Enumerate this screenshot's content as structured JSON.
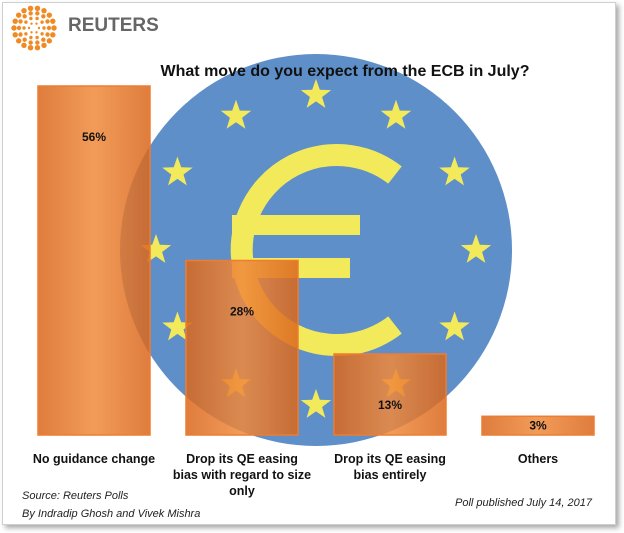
{
  "logo": "REUTERS",
  "chart_data": {
    "type": "bar",
    "title": "What move do you expect from the ECB in July?",
    "categories": [
      "No guidance change",
      "Drop its QE easing bias with regard to size only",
      "Drop its QE easing bias entirely",
      "Others"
    ],
    "values": [
      56,
      28,
      13,
      3
    ],
    "value_labels": [
      "56%",
      "28%",
      "13%",
      "3%"
    ],
    "color": "#ed7d31"
  },
  "source": "Source: Reuters Polls",
  "byline": "By Indradip Ghosh and Vivek Mishra",
  "note": "Poll published July 14, 2017"
}
